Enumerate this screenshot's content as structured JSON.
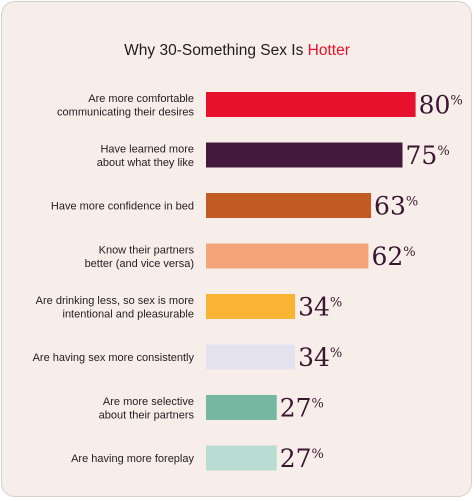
{
  "chart_data": {
    "type": "bar",
    "orientation": "horizontal",
    "title_main": "Why 30-Something Sex Is ",
    "title_accent": "Hotter",
    "categories": [
      [
        "Are more comfortable",
        "communicating their desires"
      ],
      [
        "Have learned more",
        "about what they like"
      ],
      [
        "Have more confidence in bed"
      ],
      [
        "Know their partners",
        "better (and vice versa)"
      ],
      [
        "Are drinking less, so sex is more",
        "intentional and pleasurable"
      ],
      [
        "Are having sex more consistently"
      ],
      [
        "Are more selective",
        "about their partners"
      ],
      [
        "Are having more foreplay"
      ]
    ],
    "values": [
      80,
      75,
      63,
      62,
      34,
      34,
      27,
      27
    ],
    "value_labels": [
      "80",
      "75",
      "63",
      "62",
      "34",
      "34",
      "27",
      "27"
    ],
    "unit_symbol": "%",
    "colors": [
      "#e8112d",
      "#431a3e",
      "#c25a23",
      "#f6a57b",
      "#f9b433",
      "#e4e2ee",
      "#76b7a2",
      "#b9ddd2"
    ],
    "accent_color": "#e8102b",
    "background_color": "#f7eeea",
    "gridlines": false,
    "legend": "none"
  }
}
